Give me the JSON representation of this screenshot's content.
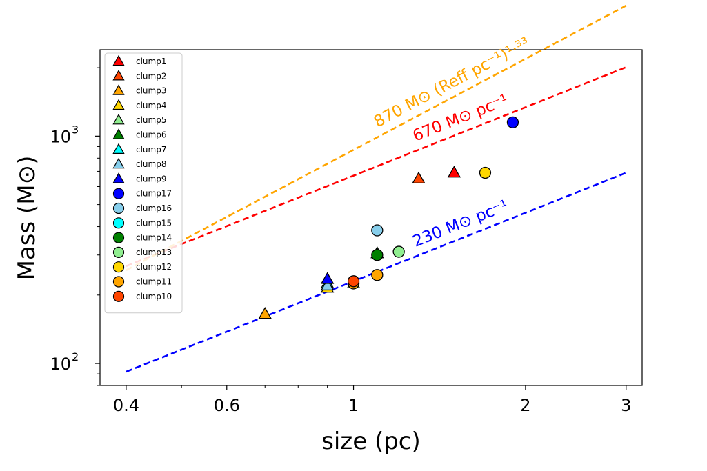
{
  "chart_data": {
    "type": "scatter",
    "xlabel": "size (pc)",
    "ylabel": "Mass (M⊙)",
    "xscale": "log",
    "yscale": "log",
    "xlim": [
      0.36,
      3.2
    ],
    "ylim": [
      80,
      2400
    ],
    "xticks": [
      {
        "value": 0.4,
        "label": "0.4"
      },
      {
        "value": 0.6,
        "label": "0.6"
      },
      {
        "value": 1,
        "label": "1"
      },
      {
        "value": 2,
        "label": "2"
      },
      {
        "value": 3,
        "label": "3"
      }
    ],
    "yticks": [
      {
        "value": 100,
        "base": "10",
        "exp": "2"
      },
      {
        "value": 1000,
        "base": "10",
        "exp": "3"
      }
    ],
    "grid": false,
    "legend_position": "upper-left",
    "lines": [
      {
        "label": "670 M⊙ pc⁻¹",
        "color": "#ff0000",
        "coef": 670,
        "power": 1,
        "x": [
          0.4,
          3.0
        ]
      },
      {
        "label": "870 M⊙ (Reff pc⁻¹)¹·³³",
        "color": "#ffa500",
        "coef": 870,
        "power": 1.33,
        "x": [
          0.4,
          3.0
        ]
      },
      {
        "label": "230 M⊙ pc⁻¹",
        "color": "#0000ff",
        "coef": 230,
        "power": 1,
        "x": [
          0.4,
          3.0
        ]
      }
    ],
    "series": [
      {
        "name": "clump1",
        "marker": "triangle",
        "color": "#ff0000",
        "points": [
          [
            1.5,
            690
          ]
        ]
      },
      {
        "name": "clump2",
        "marker": "triangle",
        "color": "#ff4500",
        "points": [
          [
            1.3,
            650
          ]
        ]
      },
      {
        "name": "clump3",
        "marker": "triangle",
        "color": "#ffa500",
        "points": [
          [
            0.7,
            165
          ]
        ]
      },
      {
        "name": "clump4",
        "marker": "triangle",
        "color": "#ffd700",
        "points": [
          [
            0.9,
            215
          ]
        ]
      },
      {
        "name": "clump5",
        "marker": "triangle",
        "color": "#90ee90",
        "points": [
          [
            1.0,
            225
          ]
        ]
      },
      {
        "name": "clump6",
        "marker": "triangle",
        "color": "#008000",
        "points": [
          [
            1.1,
            305
          ]
        ]
      },
      {
        "name": "clump7",
        "marker": "triangle",
        "color": "#00ffff",
        "points": [
          [
            0.9,
            225
          ]
        ]
      },
      {
        "name": "clump8",
        "marker": "triangle",
        "color": "#87ceeb",
        "points": [
          [
            0.9,
            220
          ]
        ]
      },
      {
        "name": "clump9",
        "marker": "triangle",
        "color": "#0000ff",
        "points": [
          [
            0.9,
            235
          ]
        ]
      },
      {
        "name": "clump17",
        "marker": "circle",
        "color": "#0000ff",
        "points": [
          [
            1.9,
            1150
          ]
        ]
      },
      {
        "name": "clump16",
        "marker": "circle",
        "color": "#87ceeb",
        "points": [
          [
            1.1,
            385
          ]
        ]
      },
      {
        "name": "clump15",
        "marker": "circle",
        "color": "#00ffff",
        "points": []
      },
      {
        "name": "clump14",
        "marker": "circle",
        "color": "#008000",
        "points": [
          [
            1.1,
            300
          ]
        ]
      },
      {
        "name": "clump13",
        "marker": "circle",
        "color": "#90ee90",
        "points": [
          [
            1.2,
            310
          ]
        ]
      },
      {
        "name": "clump12",
        "marker": "circle",
        "color": "#ffd700",
        "points": [
          [
            1.7,
            690
          ]
        ]
      },
      {
        "name": "clump11",
        "marker": "circle",
        "color": "#ffa500",
        "points": [
          [
            1.1,
            245
          ],
          [
            1.0,
            225
          ]
        ]
      },
      {
        "name": "clump10",
        "marker": "circle",
        "color": "#ff4500",
        "points": [
          [
            1.0,
            230
          ]
        ]
      }
    ]
  }
}
